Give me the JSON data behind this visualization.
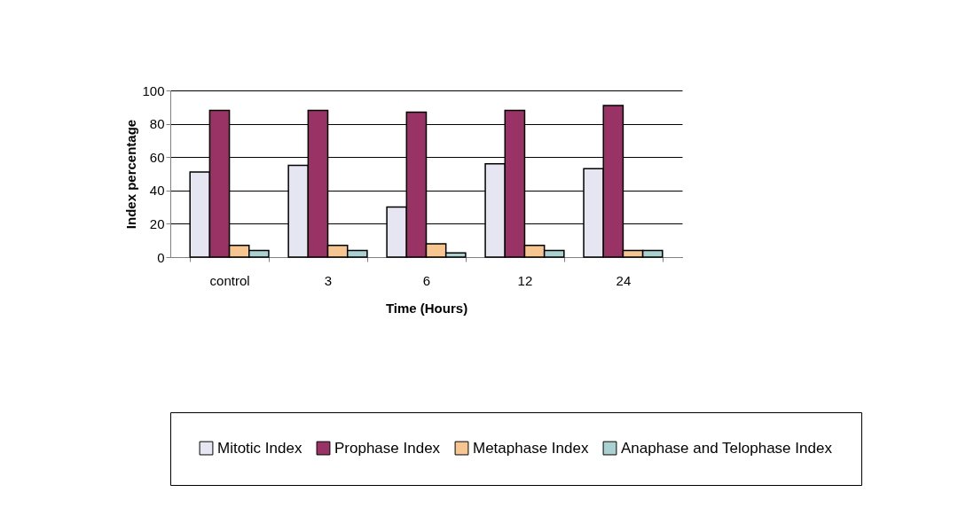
{
  "chart_data": {
    "type": "bar",
    "xlabel": "Time (Hours)",
    "ylabel": "Index percentage",
    "categories": [
      "control",
      "3",
      "6",
      "12",
      "24"
    ],
    "series": [
      {
        "name": "Mitotic Index",
        "color": "#e6e6f2",
        "values": [
          51,
          55,
          30,
          56,
          53
        ]
      },
      {
        "name": "Prophase Index",
        "color": "#993366",
        "values": [
          88,
          88,
          87,
          88,
          91
        ]
      },
      {
        "name": "Metaphase Index",
        "color": "#f7c690",
        "values": [
          7,
          7,
          8,
          7,
          4
        ]
      },
      {
        "name": "Anaphase and Telophase Index",
        "color": "#a9d1cf",
        "values": [
          4,
          4,
          2.5,
          4,
          4
        ]
      }
    ],
    "ylim": [
      0,
      100
    ],
    "yticks": [
      0,
      20,
      40,
      60,
      80,
      100
    ],
    "grid": "y",
    "legend": "bottom"
  }
}
